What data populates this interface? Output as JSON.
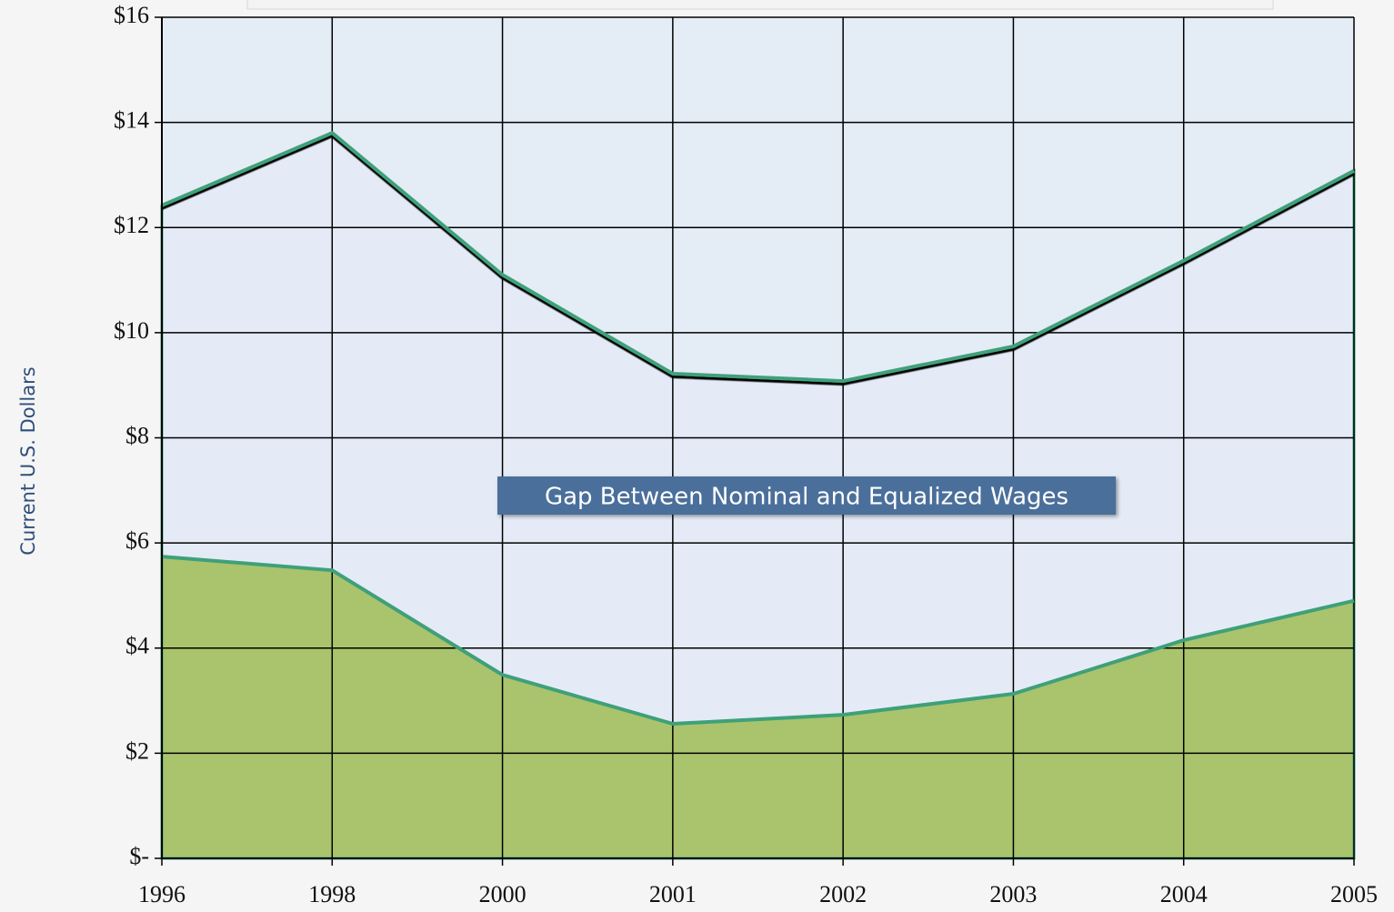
{
  "chart_data": {
    "type": "area",
    "y_label": "Current U.S. Dollars",
    "annotation": "Gap Between Nominal and Equalized Wages",
    "categories": [
      "1996",
      "1998",
      "2000",
      "2001",
      "2002",
      "2003",
      "2004",
      "2005"
    ],
    "series": [
      {
        "color": "#3fa07a",
        "fill": "#e4ecf6",
        "values": [
          12.42,
          13.8,
          11.1,
          9.22,
          9.08,
          9.74,
          11.37,
          13.08
        ]
      },
      {
        "color": "#3fa07a",
        "fill": "#a9c46c",
        "values": [
          5.74,
          5.48,
          3.49,
          2.56,
          2.73,
          3.13,
          4.15,
          4.9
        ]
      }
    ],
    "ylim": [
      0,
      16
    ],
    "yticks": [
      {
        "value": 0,
        "label": "$-"
      },
      {
        "value": 2,
        "label": "$2"
      },
      {
        "value": 4,
        "label": "$4"
      },
      {
        "value": 6,
        "label": "$6"
      },
      {
        "value": 8,
        "label": "$8"
      },
      {
        "value": 10,
        "label": "$10"
      },
      {
        "value": 12,
        "label": "$12"
      },
      {
        "value": 14,
        "label": "$14"
      },
      {
        "value": 16,
        "label": "$16"
      }
    ],
    "grid": true
  }
}
